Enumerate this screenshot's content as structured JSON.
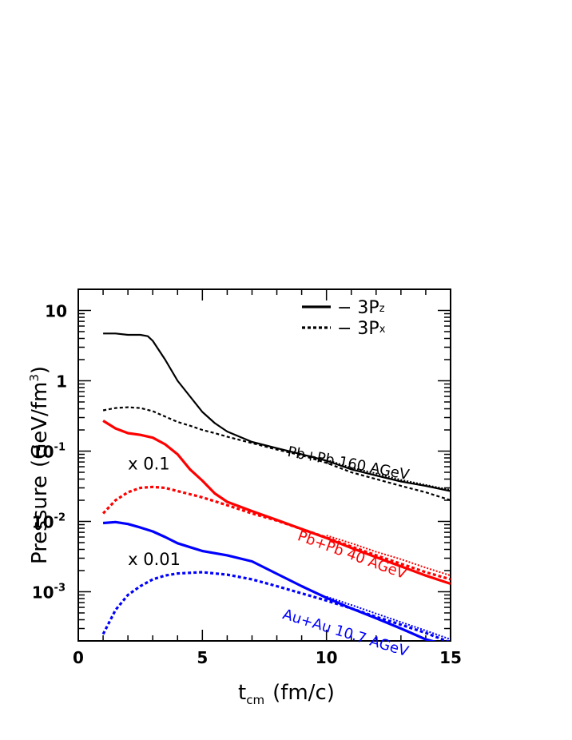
{
  "chart_data": {
    "type": "line",
    "title": "",
    "xlabel": "t",
    "xlabel_sub": "cm",
    "xlabel_unit": "(fm/c)",
    "ylabel": "Pressure",
    "ylabel_unit": "(GeV/fm",
    "ylabel_unit_sup": "3",
    "ylabel_unit_close": ")",
    "xlim": [
      0,
      15
    ],
    "ylim": [
      0.0002,
      20
    ],
    "yscale": "log",
    "grid": false,
    "legend_position": "top-right",
    "x_ticks": [
      {
        "value": 0,
        "label": "0"
      },
      {
        "value": 5,
        "label": "5"
      },
      {
        "value": 10,
        "label": "10"
      },
      {
        "value": 15,
        "label": "15"
      }
    ],
    "y_ticks": [
      {
        "value": 10,
        "label": "10",
        "exp": ""
      },
      {
        "value": 1,
        "label": "1",
        "exp": ""
      },
      {
        "value": 0.1,
        "label": "10",
        "exp": "-1"
      },
      {
        "value": 0.01,
        "label": "10",
        "exp": "-2"
      },
      {
        "value": 0.001,
        "label": "10",
        "exp": "-3"
      }
    ],
    "legend": [
      {
        "style": "solid",
        "prefix": "− 3P",
        "sub": "z"
      },
      {
        "style": "dotted",
        "prefix": "− 3P",
        "sub": "x"
      }
    ],
    "scale_annotations": [
      {
        "text": "x 0.1",
        "x": 2.0,
        "y": 0.055
      },
      {
        "text": "x 0.01",
        "x": 2.0,
        "y": 0.0024
      }
    ],
    "series": [
      {
        "name": "Pb+Pb 160 AGeV",
        "color": "#000000",
        "label_x": 8.4,
        "label_y": 0.085,
        "label_angle": 11,
        "pz": [
          [
            1,
            4.7
          ],
          [
            1.5,
            4.7
          ],
          [
            2,
            4.5
          ],
          [
            2.5,
            4.5
          ],
          [
            2.8,
            4.3
          ],
          [
            3,
            3.7
          ],
          [
            3.5,
            2.0
          ],
          [
            4,
            1.0
          ],
          [
            4.5,
            0.6
          ],
          [
            5,
            0.36
          ],
          [
            5.5,
            0.25
          ],
          [
            6,
            0.19
          ],
          [
            7,
            0.135
          ],
          [
            8,
            0.11
          ],
          [
            9,
            0.09
          ],
          [
            10,
            0.073
          ],
          [
            11,
            0.055
          ],
          [
            12,
            0.045
          ],
          [
            13,
            0.037
          ],
          [
            14,
            0.032
          ],
          [
            15,
            0.027
          ]
        ],
        "px": [
          [
            1,
            0.38
          ],
          [
            1.5,
            0.41
          ],
          [
            2,
            0.42
          ],
          [
            2.5,
            0.41
          ],
          [
            3,
            0.37
          ],
          [
            3.5,
            0.31
          ],
          [
            4,
            0.26
          ],
          [
            4.5,
            0.23
          ],
          [
            5,
            0.2
          ],
          [
            5.5,
            0.18
          ],
          [
            6,
            0.16
          ],
          [
            7,
            0.13
          ],
          [
            8,
            0.105
          ],
          [
            9,
            0.087
          ],
          [
            10,
            0.068
          ],
          [
            11,
            0.05
          ],
          [
            12,
            0.04
          ],
          [
            13,
            0.032
          ],
          [
            14,
            0.026
          ],
          [
            15,
            0.02
          ]
        ],
        "px_alt": [
          [
            10,
            0.075
          ],
          [
            11,
            0.058
          ],
          [
            12,
            0.048
          ],
          [
            13,
            0.039
          ],
          [
            14,
            0.033
          ],
          [
            15,
            0.028
          ]
        ]
      },
      {
        "name": "Pb+Pb 40 AGeV",
        "color": "#ff0000",
        "label_x": 8.8,
        "label_y": 0.0055,
        "label_angle": 20,
        "pz": [
          [
            1,
            0.27
          ],
          [
            1.5,
            0.21
          ],
          [
            2,
            0.18
          ],
          [
            2.5,
            0.17
          ],
          [
            3,
            0.155
          ],
          [
            3.5,
            0.125
          ],
          [
            4,
            0.09
          ],
          [
            4.5,
            0.055
          ],
          [
            5,
            0.038
          ],
          [
            5.5,
            0.025
          ],
          [
            6,
            0.019
          ],
          [
            7,
            0.014
          ],
          [
            8,
            0.0105
          ],
          [
            9,
            0.0078
          ],
          [
            10,
            0.0058
          ],
          [
            11,
            0.0042
          ],
          [
            12,
            0.0031
          ],
          [
            13,
            0.0023
          ],
          [
            14,
            0.0017
          ],
          [
            15,
            0.0013
          ]
        ],
        "px": [
          [
            1,
            0.013
          ],
          [
            1.5,
            0.02
          ],
          [
            2,
            0.026
          ],
          [
            2.5,
            0.03
          ],
          [
            3,
            0.031
          ],
          [
            3.5,
            0.03
          ],
          [
            4,
            0.027
          ],
          [
            5,
            0.022
          ],
          [
            6,
            0.017
          ],
          [
            7,
            0.013
          ],
          [
            8,
            0.0103
          ],
          [
            9,
            0.0078
          ],
          [
            10,
            0.0059
          ],
          [
            11,
            0.0044
          ],
          [
            12,
            0.0033
          ],
          [
            13,
            0.0025
          ],
          [
            14,
            0.0019
          ],
          [
            15,
            0.0015
          ]
        ],
        "px_alt": [
          [
            10,
            0.0063
          ],
          [
            11,
            0.0049
          ],
          [
            12,
            0.0037
          ],
          [
            13,
            0.0029
          ],
          [
            14,
            0.0022
          ],
          [
            15,
            0.0017
          ]
        ]
      },
      {
        "name": "Au+Au 10.7 AGeV",
        "color": "#0000ff",
        "label_x": 8.2,
        "label_y": 0.00042,
        "label_angle": 17,
        "pz": [
          [
            1,
            0.0095
          ],
          [
            1.5,
            0.0098
          ],
          [
            2,
            0.0092
          ],
          [
            2.5,
            0.0082
          ],
          [
            3,
            0.0072
          ],
          [
            3.5,
            0.006
          ],
          [
            4,
            0.0049
          ],
          [
            4.5,
            0.0043
          ],
          [
            5,
            0.0038
          ],
          [
            6,
            0.0033
          ],
          [
            7,
            0.0027
          ],
          [
            8,
            0.0018
          ],
          [
            9,
            0.0012
          ],
          [
            10,
            0.00082
          ],
          [
            11,
            0.00058
          ],
          [
            12,
            0.00042
          ],
          [
            13,
            0.0003
          ],
          [
            14,
            0.00021
          ],
          [
            15,
            0.00017
          ]
        ],
        "px": [
          [
            1,
            0.00025
          ],
          [
            1.5,
            0.00055
          ],
          [
            2,
            0.0009
          ],
          [
            2.5,
            0.0012
          ],
          [
            3,
            0.0015
          ],
          [
            3.5,
            0.0017
          ],
          [
            4,
            0.00182
          ],
          [
            5,
            0.0019
          ],
          [
            6,
            0.00175
          ],
          [
            7,
            0.0015
          ],
          [
            8,
            0.0012
          ],
          [
            9,
            0.00095
          ],
          [
            10,
            0.00075
          ],
          [
            11,
            0.00058
          ],
          [
            12,
            0.00044
          ],
          [
            13,
            0.00034
          ],
          [
            14,
            0.00026
          ],
          [
            15,
            0.00019
          ]
        ],
        "px_alt": [
          [
            10,
            0.00085
          ],
          [
            11,
            0.00065
          ],
          [
            12,
            0.00049
          ],
          [
            13,
            0.00037
          ],
          [
            14,
            0.00028
          ],
          [
            15,
            0.00021
          ]
        ]
      }
    ]
  }
}
